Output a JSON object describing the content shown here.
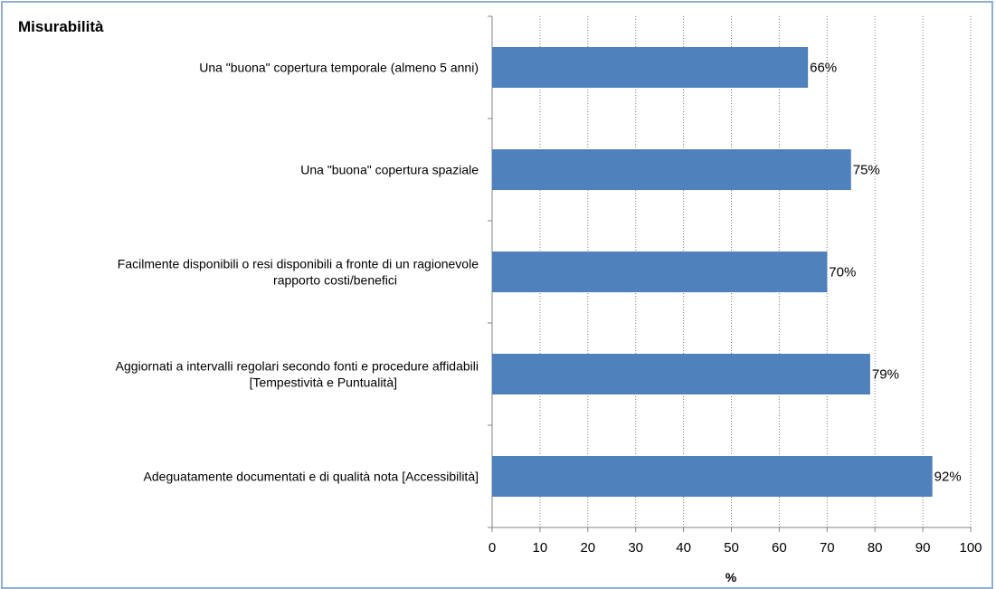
{
  "chart_data": {
    "type": "bar",
    "orientation": "horizontal",
    "title": "Misurabilità",
    "xlabel": "%",
    "ylabel": "",
    "xlim": [
      0,
      100
    ],
    "x_ticks": [
      0,
      10,
      20,
      30,
      40,
      50,
      60,
      70,
      80,
      90,
      100
    ],
    "grid": "vertical dotted",
    "legend": "none",
    "bar_color": "#4f81bd",
    "frame_color": "#8eaed3",
    "categories": [
      [
        "Una \"buona\" copertura temporale (almeno 5 anni)"
      ],
      [
        "Una \"buona\" copertura spaziale"
      ],
      [
        "Facilmente disponibili o resi disponibili a fronte di un ragionevole",
        "rapporto costi/benefici"
      ],
      [
        "Aggiornati a intervalli regolari secondo fonti e procedure affidabili",
        "[Tempestività e Puntualità]"
      ],
      [
        "Adeguatamente documentati e di qualità nota [Accessibilità]"
      ]
    ],
    "values": [
      66,
      75,
      70,
      79,
      92
    ],
    "data_labels": [
      "66%",
      "75%",
      "70%",
      "79%",
      "92%"
    ]
  }
}
